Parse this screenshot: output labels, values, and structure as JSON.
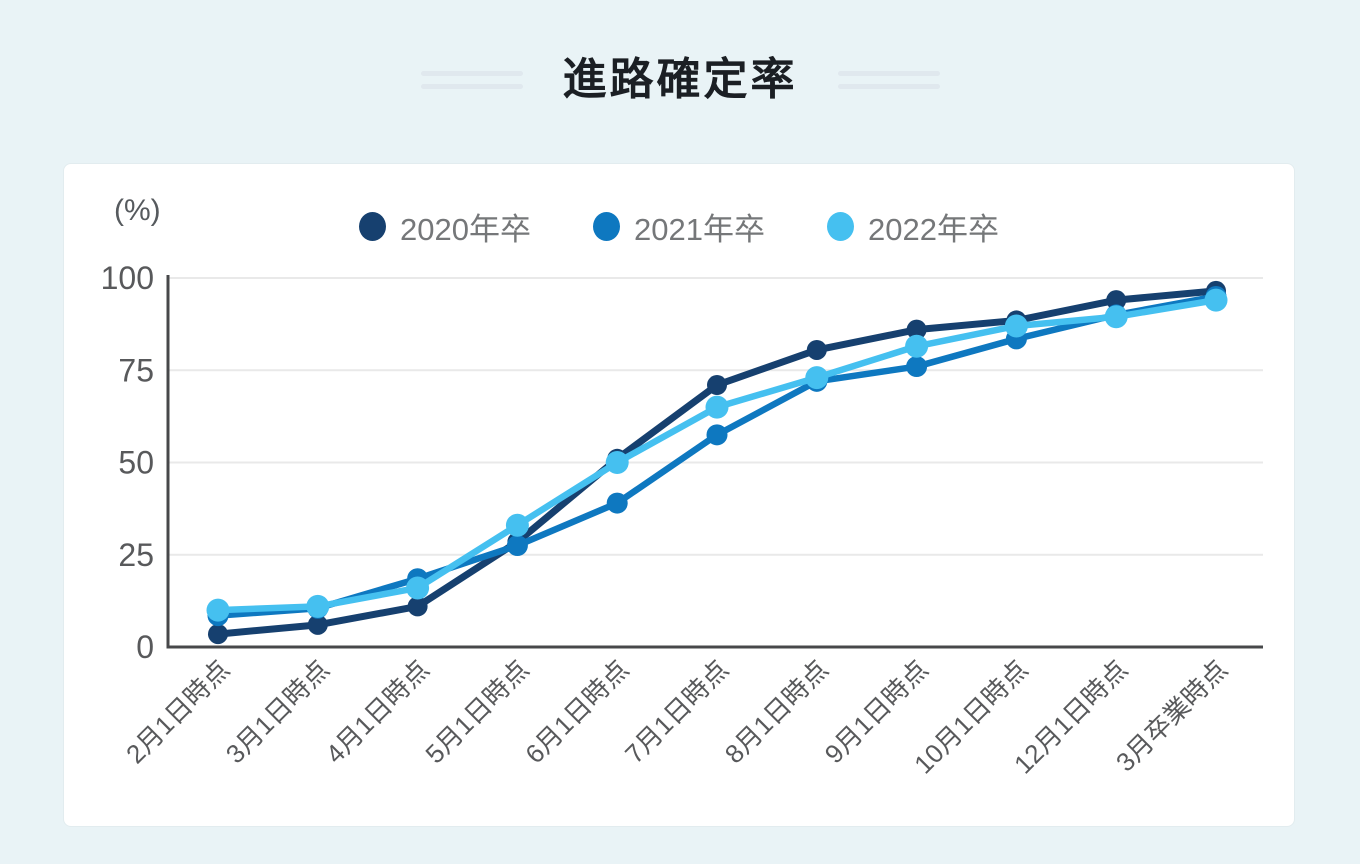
{
  "page": {
    "title": "進路確定率",
    "background_color": "#e9f3f6",
    "card_color": "#ffffff"
  },
  "chart_data": {
    "type": "line",
    "title": "進路確定率",
    "unit_label": "(%)",
    "xlabel": "",
    "ylabel": "(%)",
    "ylim": [
      0,
      100
    ],
    "yticks": [
      0,
      25,
      50,
      75,
      100
    ],
    "grid": true,
    "legend_position": "top",
    "categories": [
      "2月1日時点",
      "3月1日時点",
      "4月1日時点",
      "5月1日時点",
      "6月1日時点",
      "7月1日時点",
      "8月1日時点",
      "9月1日時点",
      "10月1日時点",
      "12月1日時点",
      "3月卒業時点"
    ],
    "series": [
      {
        "name": "2020年卒",
        "color": "#16406f",
        "values": [
          3.5,
          6,
          11,
          28.5,
          51,
          71,
          80.5,
          86,
          88.5,
          94,
          96.5
        ]
      },
      {
        "name": "2021年卒",
        "color": "#0e78c0",
        "values": [
          8.5,
          10.5,
          18.5,
          27.5,
          39,
          57.5,
          72,
          76,
          83.5,
          90,
          95
        ]
      },
      {
        "name": "2022年卒",
        "color": "#45c0f0",
        "values": [
          10,
          11,
          16,
          33,
          50,
          65,
          73,
          81.5,
          87,
          89.5,
          94
        ]
      }
    ],
    "axis_color": "#47484a",
    "grid_color": "#e9e9e9",
    "tick_text_color": "#58595b",
    "title_color": "#1b1f24"
  }
}
